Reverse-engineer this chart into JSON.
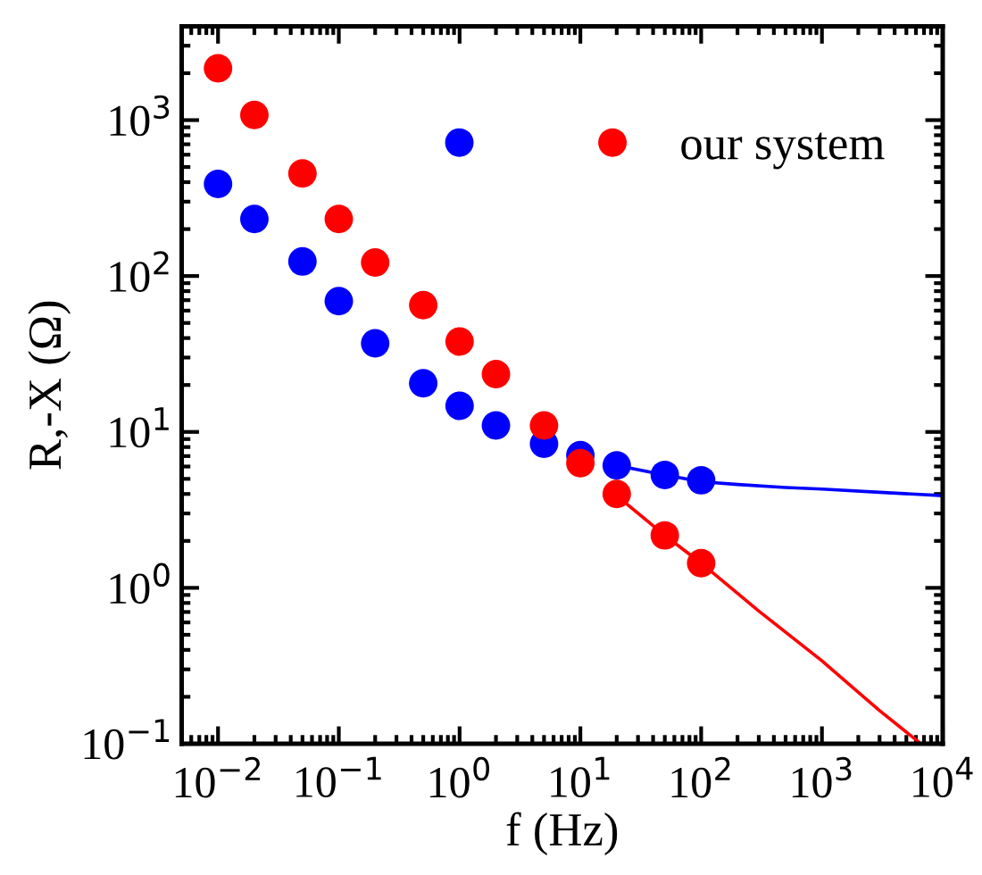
{
  "chart_data": {
    "type": "scatter",
    "xlabel": "f (Hz)",
    "ylabel": "R,-X (Ω)",
    "log": "xy",
    "xlim": [
      0.005,
      10000
    ],
    "ylim": [
      0.1,
      4000
    ],
    "xticks": [
      {
        "value": 0.01,
        "label": "10$^{−2}$"
      },
      {
        "value": 0.1,
        "label": "10$^{−1}$"
      },
      {
        "value": 1,
        "label": "10$^{0}$"
      },
      {
        "value": 10,
        "label": "10$^{1}$"
      },
      {
        "value": 100,
        "label": "10$^{2}$"
      },
      {
        "value": 1000,
        "label": "10$^{3}$"
      },
      {
        "value": 10000,
        "label": "10$^{4}$"
      }
    ],
    "yticks": [
      {
        "value": 0.1,
        "label": "10$^{−1}$"
      },
      {
        "value": 1,
        "label": "10$^{0}$"
      },
      {
        "value": 10,
        "label": "10$^{1}$"
      },
      {
        "value": 100,
        "label": "10$^{2}$"
      },
      {
        "value": 1000,
        "label": "10$^{3}$"
      }
    ],
    "grid": false,
    "legend": "top right",
    "marker": "circle",
    "series": [
      {
        "type": "scatter",
        "color": "#0000ff",
        "x": [
          0.01,
          0.02,
          0.05,
          0.1,
          0.2,
          0.5,
          1,
          2,
          5,
          10,
          20,
          50,
          100
        ],
        "values": [
          390,
          232,
          124,
          69,
          37,
          20.5,
          14.7,
          11,
          8.4,
          7.1,
          6.1,
          5.3,
          4.9
        ]
      },
      {
        "type": "scatter",
        "name": "our system",
        "color": "#ff0000",
        "x": [
          0.01,
          0.02,
          0.05,
          0.1,
          0.2,
          0.5,
          1,
          2,
          5,
          10,
          20,
          50,
          100
        ],
        "values": [
          2150,
          1080,
          455,
          232,
          122,
          65,
          38,
          23.5,
          11,
          6.3,
          4.0,
          2.17,
          1.44
        ]
      },
      {
        "type": "line",
        "color": "#0000ff",
        "marker": "none",
        "line_style": "solid",
        "x": [
          20,
          50,
          100,
          200,
          500,
          1000,
          3000,
          10000
        ],
        "values": [
          6.1,
          5.3,
          4.8,
          4.6,
          4.4,
          4.3,
          4.1,
          3.9
        ]
      },
      {
        "type": "line",
        "color": "#ff0000",
        "marker": "none",
        "line_style": "solid",
        "x": [
          20,
          50,
          100,
          300,
          1000,
          3000,
          6600
        ],
        "values": [
          3.9,
          2.17,
          1.44,
          0.71,
          0.34,
          0.163,
          0.1
        ]
      }
    ]
  }
}
